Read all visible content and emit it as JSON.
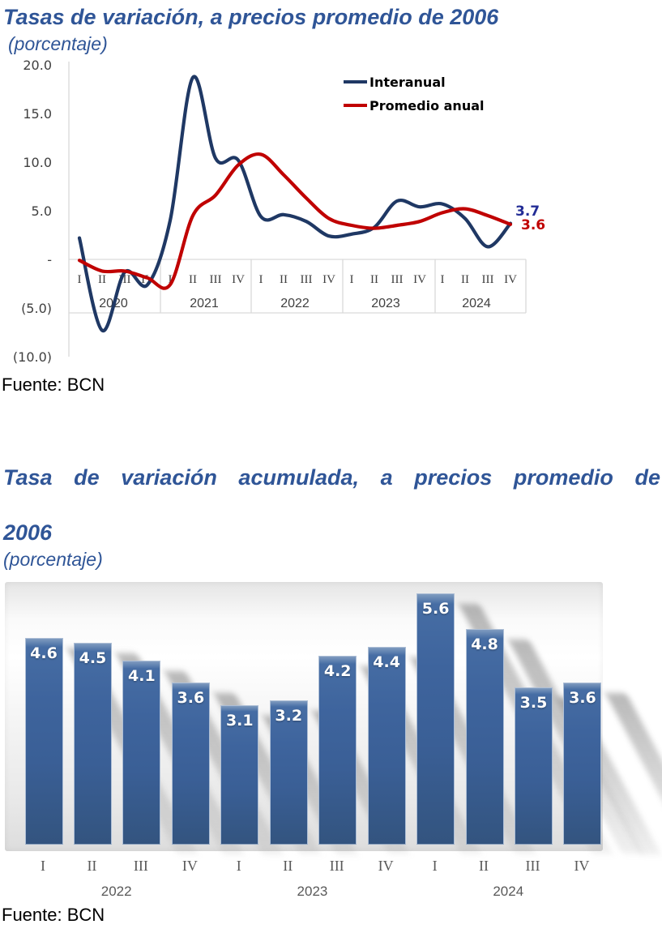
{
  "colors": {
    "title_blue": "#2F5597",
    "line_blue": "#1F3864",
    "line_red": "#C00000",
    "blue_label": "#232D96",
    "red_label": "#C00000",
    "bar_blue": "#3A5F96",
    "axis_text": "#404040",
    "grid_gray": "#D9D9D9",
    "secondary_text": "#595959"
  },
  "chart_data": [
    {
      "type": "line",
      "title": "Tasas de variación, a precios promedio de 2006",
      "subtitle": "(porcentaje)",
      "source": "Fuente: BCN",
      "years": [
        "2020",
        "2021",
        "2022",
        "2023",
        "2024"
      ],
      "quarters": [
        "I",
        "II",
        "III",
        "IV"
      ],
      "categories": [
        "2020-I",
        "2020-II",
        "2020-III",
        "2020-IV",
        "2021-I",
        "2021-II",
        "2021-III",
        "2021-IV",
        "2022-I",
        "2022-II",
        "2022-III",
        "2022-IV",
        "2023-I",
        "2023-II",
        "2023-III",
        "2023-IV",
        "2024-I",
        "2024-II",
        "2024-III",
        "2024-IV"
      ],
      "y_ticks": [
        "20.0",
        "15.0",
        "10.0",
        "5.0",
        "-",
        "(5.0)",
        "(10.0)"
      ],
      "y_tick_values": [
        20,
        15,
        10,
        5,
        0,
        -5,
        -10
      ],
      "ylim": [
        -10,
        20
      ],
      "grid": false,
      "legend_position": "top-right",
      "series": [
        {
          "name": "Interanual",
          "color": "#1F3864",
          "values": [
            2.2,
            -7.3,
            -1.3,
            -2.6,
            4.0,
            18.7,
            10.4,
            10.2,
            4.4,
            4.6,
            3.9,
            2.4,
            2.6,
            3.3,
            6.0,
            5.4,
            5.7,
            4.2,
            1.3,
            3.7
          ],
          "end_label": "3.7",
          "end_label_color": "#232D96"
        },
        {
          "name": "Promedio anual",
          "color": "#C00000",
          "values": [
            -0.1,
            -1.2,
            -1.2,
            -1.9,
            -2.6,
            4.5,
            6.6,
            9.7,
            10.8,
            8.7,
            6.3,
            4.2,
            3.5,
            3.2,
            3.5,
            3.9,
            4.8,
            5.2,
            4.5,
            3.6
          ],
          "end_label": "3.6",
          "end_label_color": "#C00000"
        }
      ]
    },
    {
      "type": "bar",
      "title": "Tasa de variación acumulada, a precios promedio de 2006",
      "title_lines": [
        "Tasa de variación acumulada, a precios promedio de",
        "2006"
      ],
      "subtitle": "(porcentaje)",
      "source": "Fuente: BCN",
      "years": [
        "2022",
        "2023",
        "2024"
      ],
      "quarters": [
        "I",
        "II",
        "III",
        "IV"
      ],
      "categories": [
        "2022-I",
        "2022-II",
        "2022-III",
        "2022-IV",
        "2023-I",
        "2023-II",
        "2023-III",
        "2023-IV",
        "2024-I",
        "2024-II",
        "2024-III",
        "2024-IV"
      ],
      "values": [
        4.6,
        4.5,
        4.1,
        3.6,
        3.1,
        3.2,
        4.2,
        4.4,
        5.6,
        4.8,
        3.5,
        3.6
      ],
      "labels": [
        "4.6",
        "4.5",
        "4.1",
        "3.6",
        "3.1",
        "3.2",
        "4.2",
        "4.4",
        "5.6",
        "4.8",
        "3.5",
        "3.6"
      ],
      "ylim": [
        0,
        5.9
      ],
      "grid": false,
      "legend_position": "none"
    }
  ]
}
